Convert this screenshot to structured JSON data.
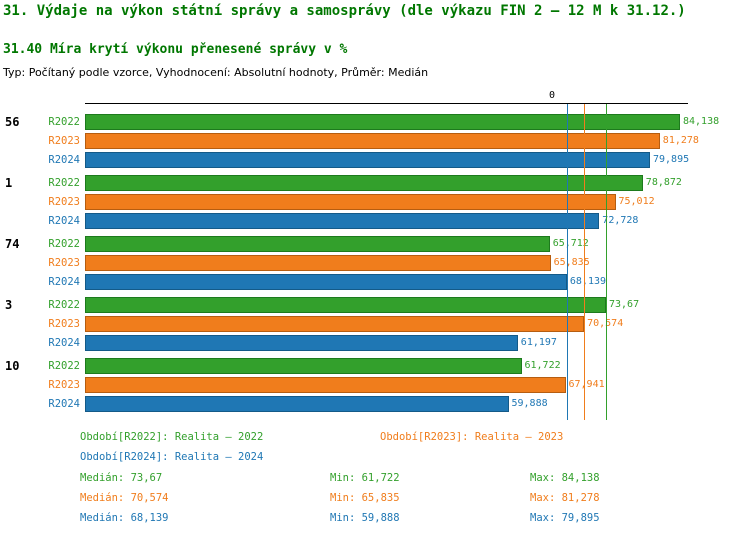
{
  "header": {
    "title": "31. Výdaje na výkon státní správy a samosprávy (dle výkazu FIN 2 – 12 M k 31.12.)",
    "subtitle": "31.40 Míra krytí výkonu přenesené správy v %",
    "meta": "Typ: Počítaný podle vzorce, Vyhodnocení: Absolutní hodnoty, Průměr: Medián",
    "title_color": "#007700"
  },
  "chart_data": {
    "type": "bar",
    "orientation": "horizontal",
    "value_unit": "%",
    "axis_zero_label": "0",
    "x_range": [
      0,
      85
    ],
    "grid": false,
    "series": [
      {
        "name": "R2022",
        "color": "#33a02c",
        "border": "#1d7a1d",
        "median_value": 73.67
      },
      {
        "name": "R2023",
        "color": "#f07d1c",
        "border": "#b65d10",
        "median_value": 70.574
      },
      {
        "name": "R2024",
        "color": "#1f77b4",
        "border": "#145a88",
        "median_value": 68.139
      }
    ],
    "groups": [
      {
        "label": "56",
        "values": [
          84.138,
          81.278,
          79.895
        ],
        "value_labels": [
          "84,138",
          "81,278",
          "79,895"
        ]
      },
      {
        "label": "1",
        "values": [
          78.872,
          75.012,
          72.728
        ],
        "value_labels": [
          "78,872",
          "75,012",
          "72,728"
        ]
      },
      {
        "label": "74",
        "values": [
          65.712,
          65.835,
          68.139
        ],
        "value_labels": [
          "65,712",
          "65,835",
          "68,139"
        ]
      },
      {
        "label": "3",
        "values": [
          73.67,
          70.574,
          61.197
        ],
        "value_labels": [
          "73,67",
          "70,574",
          "61,197"
        ]
      },
      {
        "label": "10",
        "values": [
          61.722,
          67.941,
          59.888
        ],
        "value_labels": [
          "61,722",
          "67,941",
          "59,888"
        ]
      }
    ],
    "legend": [
      {
        "text": "Období[R2022]: Realita – 2022"
      },
      {
        "text": "Období[R2023]: Realita – 2023"
      },
      {
        "text": "Období[R2024]: Realita – 2024"
      }
    ],
    "stats": [
      {
        "median": "Medián: 73,67",
        "min": "Min: 61,722",
        "max": "Max: 84,138"
      },
      {
        "median": "Medián: 70,574",
        "min": "Min: 65,835",
        "max": "Max: 81,278"
      },
      {
        "median": "Medián: 68,139",
        "min": "Min: 59,888",
        "max": "Max: 79,895"
      }
    ]
  }
}
